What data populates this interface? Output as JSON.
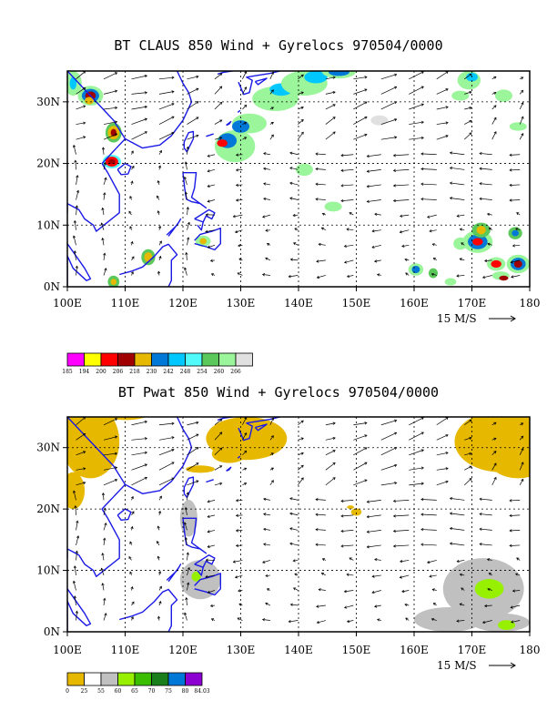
{
  "panels": [
    {
      "title": "BT CLAUS 850 Wind + Gyrelocs 970504/0000",
      "x_ticks": [
        "100E",
        "110E",
        "120E",
        "130E",
        "140E",
        "150E",
        "160E",
        "170E",
        "180"
      ],
      "y_ticks": [
        "0N",
        "10N",
        "20N",
        "30N"
      ],
      "scale_label": "15 M/S",
      "colorbar": {
        "labels": [
          "185",
          "194",
          "200",
          "206",
          "218",
          "230",
          "242",
          "248",
          "254",
          "260",
          "266"
        ],
        "colors": [
          "#ff00ff",
          "#ffff00",
          "#ff0000",
          "#a00000",
          "#e6b800",
          "#0078d7",
          "#00c8ff",
          "#50fafa",
          "#5ac85a",
          "#9bf59b",
          "#e0e0e0"
        ]
      },
      "fields": "cloud brightness temperature shading with 850 hPa wind vectors"
    },
    {
      "title": "BT Pwat 850 Wind + Gyrelocs 970504/0000",
      "x_ticks": [
        "100E",
        "110E",
        "120E",
        "130E",
        "140E",
        "150E",
        "160E",
        "170E",
        "180"
      ],
      "y_ticks": [
        "0N",
        "10N",
        "20N",
        "30N"
      ],
      "scale_label": "15 M/S",
      "colorbar": {
        "labels": [
          "0",
          "25",
          "55",
          "60",
          "65",
          "70",
          "75",
          "80",
          "84.03"
        ],
        "colors": [
          "#e6b800",
          "#ffffff",
          "#c0c0c0",
          "#96f000",
          "#3cbe00",
          "#1a7f1a",
          "#0078d7",
          "#8c00d2"
        ]
      },
      "fields": "precipitable water shading with 850 hPa wind vectors"
    }
  ],
  "map": {
    "lon_range": [
      100,
      180
    ],
    "lat_range": [
      0,
      35
    ],
    "coast_color": "#1a1ae6"
  }
}
